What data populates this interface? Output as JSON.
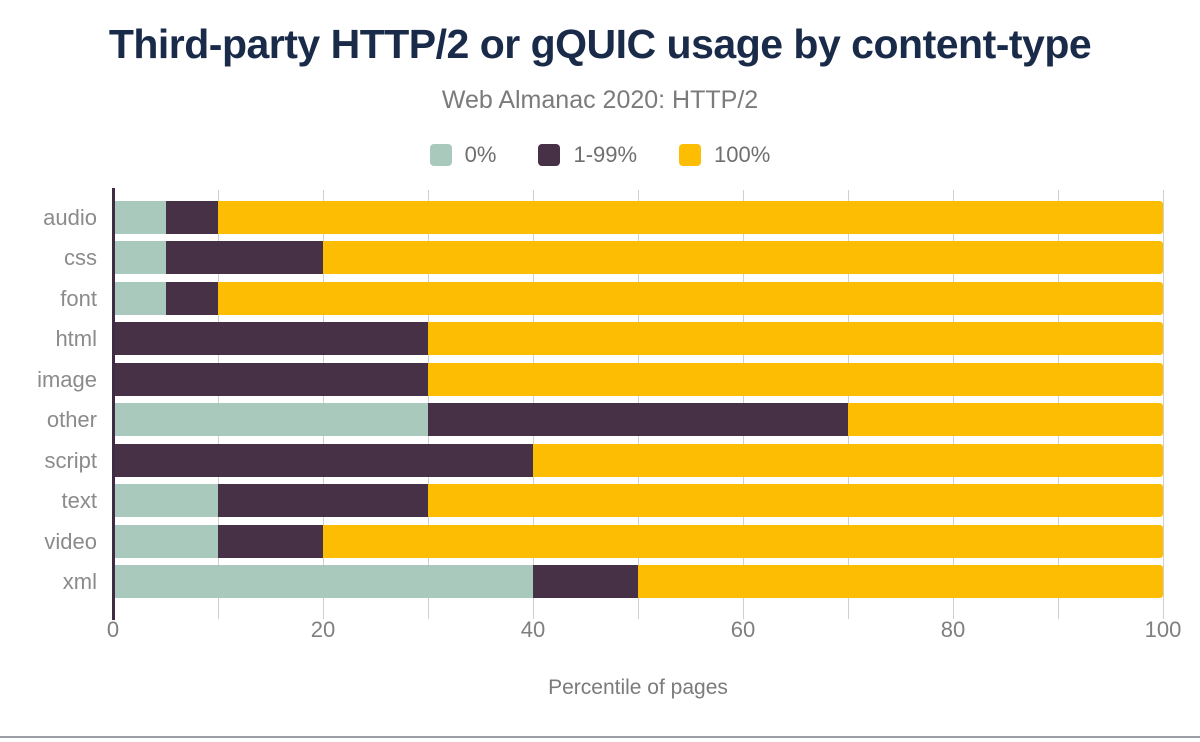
{
  "page": {
    "background": "#ffffff",
    "footer_divider_color": "#9aa0a6"
  },
  "chart_data": {
    "type": "bar",
    "orientation": "horizontal",
    "stacked": true,
    "title": "Third-party HTTP/2 or gQUIC usage by content-type",
    "subtitle": "Web Almanac 2020: HTTP/2",
    "xlabel": "Percentile of pages",
    "xlim": [
      0,
      100
    ],
    "xticks": [
      0,
      20,
      40,
      60,
      80,
      100
    ],
    "gridline_interval": 10,
    "grid": true,
    "legend_position": "top",
    "title_color": "#1a2b4a",
    "text_color": "#7b7b7b",
    "axis_label_color": "#8b8b8b",
    "gridline_color": "#cfcfcf",
    "axis_line_color": "#3e2c44",
    "categories": [
      "audio",
      "css",
      "font",
      "html",
      "image",
      "other",
      "script",
      "text",
      "video",
      "xml"
    ],
    "series": [
      {
        "name": "0%",
        "color": "#a8c9bc",
        "values": [
          5,
          5,
          5,
          0,
          0,
          30,
          0,
          10,
          10,
          40
        ]
      },
      {
        "name": "1-99%",
        "color": "#473146",
        "values": [
          5,
          15,
          5,
          30,
          30,
          40,
          40,
          20,
          10,
          10
        ]
      },
      {
        "name": "100%",
        "color": "#fcbd02",
        "values": [
          90,
          80,
          90,
          70,
          70,
          30,
          60,
          70,
          80,
          50
        ]
      }
    ]
  }
}
